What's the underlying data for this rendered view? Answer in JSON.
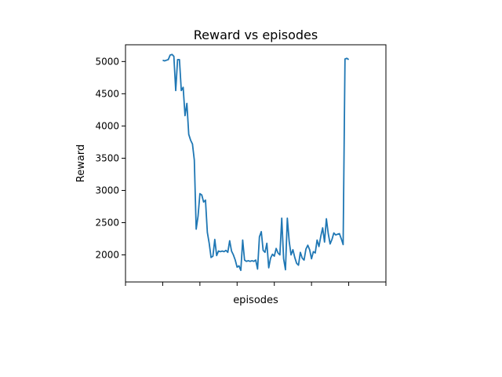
{
  "chart_data": {
    "type": "line",
    "title": "Reward vs episodes",
    "xlabel": "episodes",
    "ylabel": "Reward",
    "grid": false,
    "legend": "none",
    "color": "#1f77b4",
    "xlim": [
      -20,
      120
    ],
    "ylim": [
      1580,
      5260
    ],
    "x_ticks": [
      -20,
      0,
      20,
      40,
      60,
      80,
      100,
      120
    ],
    "x_tick_labels_shown": false,
    "y_ticks": [
      2000,
      2500,
      3000,
      3500,
      4000,
      4500,
      5000
    ],
    "y_tick_labels": [
      "2000",
      "2500",
      "3000",
      "3500",
      "4000",
      "4500",
      "5000"
    ],
    "series": [
      {
        "x": [
          0,
          1,
          2,
          3,
          4,
          5,
          6,
          7,
          8,
          9,
          10,
          11,
          12,
          13,
          14,
          15,
          16,
          17,
          18,
          19,
          20,
          21,
          22,
          23,
          24,
          25,
          26,
          27,
          28,
          29,
          30,
          31,
          32,
          33,
          34,
          35,
          36,
          37,
          38,
          39,
          40,
          41,
          42,
          43,
          44,
          45,
          46,
          47,
          48,
          49,
          50,
          51,
          52,
          53,
          54,
          55,
          56,
          57,
          58,
          59,
          60,
          61,
          62,
          63,
          64,
          65,
          66,
          67,
          68,
          69,
          70,
          71,
          72,
          73,
          74,
          75,
          76,
          77,
          78,
          79,
          80,
          81,
          82,
          83,
          84,
          85,
          86,
          87,
          88,
          89,
          90,
          91,
          92,
          93,
          94,
          95,
          96,
          97,
          98,
          99,
          100
        ],
        "y": [
          5020,
          5010,
          5020,
          5030,
          5100,
          5110,
          5080,
          4550,
          5030,
          5030,
          4550,
          4600,
          4160,
          4350,
          3870,
          3780,
          3720,
          3470,
          2400,
          2600,
          2950,
          2930,
          2820,
          2850,
          2350,
          2180,
          1960,
          1980,
          2240,
          1990,
          2060,
          2050,
          2060,
          2050,
          2070,
          2040,
          2220,
          2060,
          2000,
          1920,
          1810,
          1830,
          1760,
          2230,
          1920,
          1900,
          1910,
          1900,
          1910,
          1900,
          1920,
          1780,
          2280,
          2360,
          2070,
          2040,
          2180,
          1800,
          1950,
          2010,
          1980,
          2100,
          2030,
          2000,
          2570,
          1940,
          1770,
          2570,
          2210,
          2000,
          2080,
          1960,
          1870,
          1840,
          2040,
          1950,
          1920,
          2090,
          2150,
          2080,
          1940,
          2050,
          2030,
          2230,
          2130,
          2290,
          2420,
          2200,
          2560,
          2330,
          2170,
          2240,
          2340,
          2310,
          2320,
          2330,
          2250,
          2160,
          5040,
          5050,
          5030
        ]
      }
    ]
  }
}
